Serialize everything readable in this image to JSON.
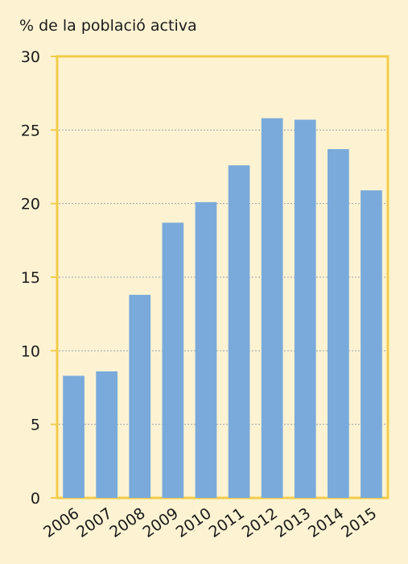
{
  "chart_data": {
    "type": "bar",
    "title": "",
    "ylabel": "% de la població activa",
    "xlabel": "",
    "categories": [
      "2006",
      "2007",
      "2008",
      "2009",
      "2010",
      "2011",
      "2012",
      "2013",
      "2014",
      "2015"
    ],
    "values": [
      8.3,
      8.6,
      13.8,
      18.7,
      20.1,
      22.6,
      25.8,
      25.7,
      23.7,
      20.9
    ],
    "ylim": [
      0,
      30
    ],
    "yticks": [
      0,
      5,
      10,
      15,
      20,
      25,
      30
    ],
    "grid": true,
    "legend": "none",
    "colors": {
      "bar": "#7aaadb",
      "frame": "#f2cc4a",
      "background": "#fdf3d3",
      "grid": "#9aa3ad"
    }
  }
}
